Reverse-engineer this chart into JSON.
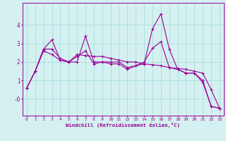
{
  "x": [
    0,
    1,
    2,
    3,
    4,
    5,
    6,
    7,
    8,
    9,
    10,
    11,
    12,
    13,
    14,
    15,
    16,
    17,
    18,
    19,
    20,
    21,
    22,
    23
  ],
  "series1": [
    0.6,
    1.5,
    2.7,
    3.2,
    2.1,
    2.0,
    2.0,
    3.4,
    2.0,
    2.0,
    1.9,
    1.9,
    1.6,
    1.8,
    1.9,
    3.8,
    4.6,
    2.7,
    1.6,
    1.4,
    1.4,
    0.9,
    -0.4,
    -0.5
  ],
  "series2": [
    0.6,
    1.5,
    2.7,
    2.7,
    2.2,
    2.0,
    2.3,
    2.6,
    1.9,
    2.0,
    2.0,
    2.0,
    1.7,
    1.8,
    2.0,
    2.75,
    3.1,
    1.7,
    1.6,
    1.4,
    1.4,
    1.0,
    -0.4,
    -0.5
  ],
  "series3": [
    0.6,
    1.5,
    2.6,
    2.4,
    2.1,
    2.0,
    2.4,
    2.35,
    2.3,
    2.3,
    2.2,
    2.1,
    2.0,
    2.0,
    1.9,
    1.85,
    1.8,
    1.7,
    1.65,
    1.6,
    1.5,
    1.4,
    0.5,
    -0.5
  ],
  "line_color": "#990099",
  "marker": "+",
  "bg_color": "#d4f0f0",
  "grid_color": "#aadddd",
  "axis_color": "#990099",
  "xlabel": "Windchill (Refroidissement éolien,°C)",
  "xlim": [
    -0.5,
    23.5
  ],
  "ylim": [
    -0.9,
    5.2
  ],
  "yticks": [
    0,
    1,
    2,
    3,
    4
  ],
  "ytick_labels": [
    "-0",
    "1",
    "2",
    "3",
    "4"
  ],
  "xticks": [
    0,
    1,
    2,
    3,
    4,
    5,
    6,
    7,
    8,
    9,
    10,
    11,
    12,
    13,
    14,
    15,
    16,
    17,
    18,
    19,
    20,
    21,
    22,
    23
  ]
}
